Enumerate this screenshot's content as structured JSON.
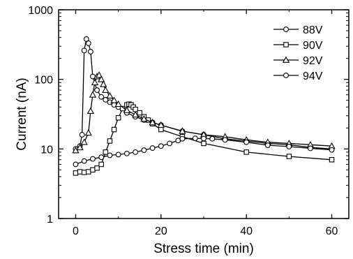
{
  "chart_data": {
    "type": "line",
    "xlabel": "Stress time (min)",
    "ylabel": "Current  (nA)",
    "xlim": [
      -4,
      64
    ],
    "ylim": [
      1,
      1000
    ],
    "yscale": "log",
    "x_ticks": [
      0,
      20,
      40,
      60
    ],
    "y_ticks": [
      1,
      10,
      100,
      1000
    ],
    "x_tick_labels": [
      "0",
      "20",
      "40",
      "60"
    ],
    "y_tick_labels": [
      "1",
      "10",
      "100",
      "1000"
    ],
    "grid": false,
    "legend_position": "top-right",
    "series": [
      {
        "name": "88V",
        "marker": "circle",
        "x": [
          0,
          1,
          1.5,
          2,
          2.5,
          3,
          3.5,
          4,
          5,
          6,
          7,
          8,
          9,
          10,
          12,
          14,
          16,
          18,
          20,
          25,
          30,
          35,
          40,
          45,
          50,
          55,
          60
        ],
        "y": [
          10,
          11,
          16,
          260,
          380,
          330,
          250,
          110,
          70,
          56,
          51,
          47,
          43,
          40,
          33,
          29,
          26,
          24,
          22,
          18,
          16,
          14,
          13,
          12,
          11.5,
          10.5,
          10
        ]
      },
      {
        "name": "90V",
        "marker": "square",
        "x": [
          0,
          1,
          2,
          3,
          4,
          5,
          6,
          7,
          8,
          9,
          10,
          11,
          12,
          12.5,
          13,
          13.5,
          14,
          15,
          16,
          17,
          18,
          20,
          25,
          30,
          40,
          50,
          60
        ],
        "y": [
          4.5,
          4.7,
          4.6,
          4.7,
          5,
          5.3,
          6,
          9,
          13,
          19,
          28,
          38,
          43,
          44,
          43,
          40,
          37,
          33,
          29,
          26,
          23,
          19,
          15,
          12,
          9,
          7.8,
          7
        ]
      },
      {
        "name": "92V",
        "marker": "triangle",
        "x": [
          0,
          1,
          2,
          3,
          3.5,
          4,
          4.5,
          5,
          5.5,
          6,
          6.5,
          7,
          8,
          9,
          10,
          12,
          14,
          16,
          18,
          20,
          25,
          30,
          35,
          40,
          45,
          50,
          55,
          60
        ],
        "y": [
          9.5,
          10.5,
          12.5,
          17,
          35,
          60,
          90,
          110,
          115,
          100,
          85,
          70,
          58,
          50,
          44,
          36,
          31,
          27,
          24,
          22,
          18,
          16,
          15,
          13.5,
          12.5,
          12,
          11.5,
          11
        ]
      },
      {
        "name": "94V",
        "marker": "circle",
        "x": [
          0,
          2,
          4,
          6,
          8,
          10,
          12,
          14,
          16,
          18,
          20,
          22,
          24,
          25,
          28,
          30,
          32,
          35,
          40,
          45,
          50,
          55,
          60
        ],
        "y": [
          6,
          6.7,
          7.2,
          7.6,
          8.1,
          8.3,
          8.6,
          9,
          9.6,
          10.3,
          11,
          12,
          13.2,
          14,
          14.2,
          14.1,
          14,
          13.5,
          12.5,
          11.3,
          10.8,
          10.2,
          9.7
        ]
      }
    ]
  }
}
